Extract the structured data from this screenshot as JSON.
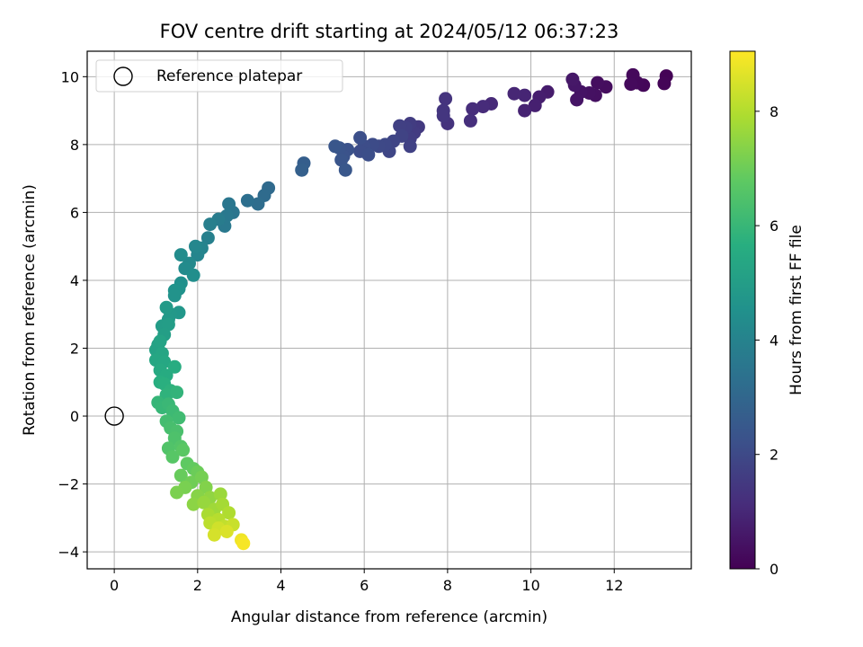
{
  "chart_data": {
    "type": "scatter",
    "title": "FOV centre drift starting at 2024/05/12 06:37:23",
    "xlabel": "Angular distance from reference (arcmin)",
    "ylabel": "Rotation from reference (arcmin)",
    "colorbar_label": "Hours from first FF file",
    "colormap": "viridis",
    "xlim": [
      -0.65,
      13.85
    ],
    "ylim": [
      -4.5,
      10.75
    ],
    "clim": [
      0,
      9.05
    ],
    "xticks": [
      0,
      2,
      4,
      6,
      8,
      10,
      12
    ],
    "xtick_labels": [
      "0",
      "2",
      "4",
      "6",
      "8",
      "10",
      "12"
    ],
    "yticks": [
      -4,
      -2,
      0,
      2,
      4,
      6,
      8,
      10
    ],
    "ytick_labels": [
      "−4",
      "−2",
      "0",
      "2",
      "4",
      "6",
      "8",
      "10"
    ],
    "cticks": [
      0,
      2,
      4,
      6,
      8
    ],
    "ctick_labels": [
      "0",
      "2",
      "4",
      "6",
      "8"
    ],
    "grid": true,
    "legend": {
      "position": "upper-left",
      "entries": [
        "Reference platepar"
      ]
    },
    "reference_point": {
      "label": "Reference platepar",
      "x": 0,
      "y": 0
    },
    "series": [
      {
        "values": [
          [
            13.25,
            10.02,
            0.05
          ],
          [
            13.2,
            9.8,
            0.1
          ],
          [
            12.7,
            9.75,
            0.15
          ],
          [
            12.55,
            9.82,
            0.18
          ],
          [
            12.45,
            10.05,
            0.2
          ],
          [
            12.4,
            9.78,
            0.23
          ],
          [
            11.8,
            9.7,
            0.3
          ],
          [
            11.6,
            9.82,
            0.33
          ],
          [
            11.55,
            9.45,
            0.38
          ],
          [
            11.4,
            9.52,
            0.42
          ],
          [
            11.2,
            9.55,
            0.47
          ],
          [
            11.1,
            9.32,
            0.5
          ],
          [
            11.05,
            9.75,
            0.55
          ],
          [
            11.0,
            9.92,
            0.58
          ],
          [
            10.4,
            9.55,
            0.7
          ],
          [
            10.2,
            9.4,
            0.75
          ],
          [
            10.1,
            9.15,
            0.8
          ],
          [
            9.85,
            9.0,
            0.88
          ],
          [
            9.85,
            9.45,
            0.92
          ],
          [
            9.6,
            9.5,
            0.97
          ],
          [
            9.05,
            9.2,
            1.05
          ],
          [
            8.85,
            9.12,
            1.1
          ],
          [
            8.6,
            9.05,
            1.15
          ],
          [
            8.55,
            8.7,
            1.2
          ],
          [
            8.0,
            8.62,
            1.3
          ],
          [
            7.95,
            9.35,
            1.33
          ],
          [
            7.9,
            9.0,
            1.37
          ],
          [
            7.9,
            8.85,
            1.4
          ],
          [
            7.3,
            8.52,
            1.5
          ],
          [
            7.2,
            8.35,
            1.55
          ],
          [
            7.1,
            8.62,
            1.58
          ],
          [
            7.1,
            8.18,
            1.62
          ],
          [
            7.0,
            8.5,
            1.67
          ],
          [
            6.85,
            8.55,
            1.72
          ],
          [
            7.1,
            7.95,
            1.75
          ],
          [
            6.9,
            8.25,
            1.8
          ],
          [
            6.7,
            8.1,
            1.85
          ],
          [
            6.6,
            7.8,
            1.9
          ],
          [
            6.5,
            8.0,
            1.95
          ],
          [
            6.35,
            7.95,
            2.0
          ],
          [
            6.2,
            8.0,
            2.05
          ],
          [
            6.0,
            7.95,
            2.1
          ],
          [
            5.9,
            7.8,
            2.12
          ],
          [
            6.1,
            7.7,
            2.15
          ],
          [
            5.9,
            8.2,
            2.18
          ],
          [
            5.6,
            7.85,
            2.25
          ],
          [
            5.5,
            7.65,
            2.3
          ],
          [
            5.4,
            7.9,
            2.33
          ],
          [
            5.45,
            7.55,
            2.36
          ],
          [
            5.3,
            7.95,
            2.4
          ],
          [
            5.55,
            7.25,
            2.45
          ],
          [
            4.55,
            7.45,
            2.7
          ],
          [
            4.5,
            7.25,
            2.75
          ],
          [
            3.7,
            6.72,
            3.1
          ],
          [
            3.6,
            6.5,
            3.15
          ],
          [
            3.45,
            6.25,
            3.2
          ],
          [
            3.2,
            6.35,
            3.3
          ],
          [
            2.85,
            6.0,
            3.5
          ],
          [
            2.75,
            6.25,
            3.55
          ],
          [
            2.7,
            5.9,
            3.6
          ],
          [
            2.65,
            5.6,
            3.65
          ],
          [
            2.5,
            5.8,
            3.75
          ],
          [
            2.3,
            5.65,
            3.85
          ],
          [
            2.25,
            5.25,
            3.9
          ],
          [
            2.1,
            4.95,
            4.05
          ],
          [
            2.0,
            4.75,
            4.1
          ],
          [
            1.95,
            5.0,
            4.15
          ],
          [
            1.8,
            4.5,
            4.25
          ],
          [
            1.7,
            4.35,
            4.3
          ],
          [
            1.6,
            4.75,
            4.35
          ],
          [
            1.9,
            4.15,
            4.4
          ],
          [
            1.6,
            3.92,
            4.5
          ],
          [
            1.55,
            3.75,
            4.55
          ],
          [
            1.45,
            3.7,
            4.6
          ],
          [
            1.45,
            3.55,
            4.62
          ],
          [
            1.55,
            3.05,
            4.75
          ],
          [
            1.35,
            3.0,
            4.8
          ],
          [
            1.3,
            2.85,
            4.85
          ],
          [
            1.25,
            3.2,
            4.88
          ],
          [
            1.15,
            2.65,
            4.95
          ],
          [
            1.3,
            2.7,
            4.98
          ],
          [
            1.2,
            2.4,
            5.05
          ],
          [
            1.05,
            2.1,
            5.15
          ],
          [
            1.0,
            1.95,
            5.2
          ],
          [
            1.1,
            2.2,
            5.22
          ],
          [
            1.15,
            1.85,
            5.3
          ],
          [
            1.0,
            1.65,
            5.35
          ],
          [
            1.2,
            1.6,
            5.4
          ],
          [
            1.1,
            1.35,
            5.48
          ],
          [
            1.25,
            1.2,
            5.52
          ],
          [
            1.45,
            1.45,
            5.58
          ],
          [
            1.1,
            1.0,
            5.65
          ],
          [
            1.2,
            0.95,
            5.7
          ],
          [
            1.35,
            0.75,
            5.78
          ],
          [
            1.25,
            0.62,
            5.82
          ],
          [
            1.5,
            0.7,
            5.88
          ],
          [
            1.05,
            0.4,
            5.95
          ],
          [
            1.15,
            0.25,
            6.0
          ],
          [
            1.3,
            0.35,
            6.05
          ],
          [
            1.4,
            0.15,
            6.12
          ],
          [
            1.55,
            -0.05,
            6.18
          ],
          [
            1.25,
            -0.15,
            6.25
          ],
          [
            1.35,
            -0.35,
            6.32
          ],
          [
            1.5,
            -0.45,
            6.38
          ],
          [
            1.45,
            -0.65,
            6.45
          ],
          [
            1.3,
            -0.95,
            6.52
          ],
          [
            1.6,
            -0.9,
            6.58
          ],
          [
            1.4,
            -1.2,
            6.65
          ],
          [
            1.65,
            -1.0,
            6.7
          ],
          [
            1.75,
            -1.4,
            6.78
          ],
          [
            1.9,
            -1.55,
            6.85
          ],
          [
            1.6,
            -1.75,
            6.92
          ],
          [
            2.0,
            -1.65,
            6.98
          ],
          [
            1.85,
            -1.95,
            7.05
          ],
          [
            2.1,
            -1.8,
            7.12
          ],
          [
            1.7,
            -2.1,
            7.18
          ],
          [
            1.5,
            -2.25,
            7.2
          ],
          [
            2.2,
            -2.1,
            7.3
          ],
          [
            2.0,
            -2.35,
            7.38
          ],
          [
            1.9,
            -2.6,
            7.45
          ],
          [
            2.3,
            -2.4,
            7.52
          ],
          [
            2.15,
            -2.55,
            7.6
          ],
          [
            2.55,
            -2.3,
            7.66
          ],
          [
            2.4,
            -2.75,
            7.72
          ],
          [
            2.6,
            -2.6,
            7.8
          ],
          [
            2.25,
            -2.9,
            7.88
          ],
          [
            2.75,
            -2.85,
            7.95
          ],
          [
            2.5,
            -3.05,
            8.05
          ],
          [
            2.3,
            -3.15,
            8.12
          ],
          [
            2.65,
            -3.25,
            8.2
          ],
          [
            2.85,
            -3.2,
            8.3
          ],
          [
            2.5,
            -3.3,
            8.4
          ],
          [
            2.4,
            -3.5,
            8.48
          ],
          [
            2.7,
            -3.4,
            8.55
          ],
          [
            3.05,
            -3.65,
            8.85
          ],
          [
            3.1,
            -3.75,
            8.95
          ]
        ]
      }
    ]
  }
}
